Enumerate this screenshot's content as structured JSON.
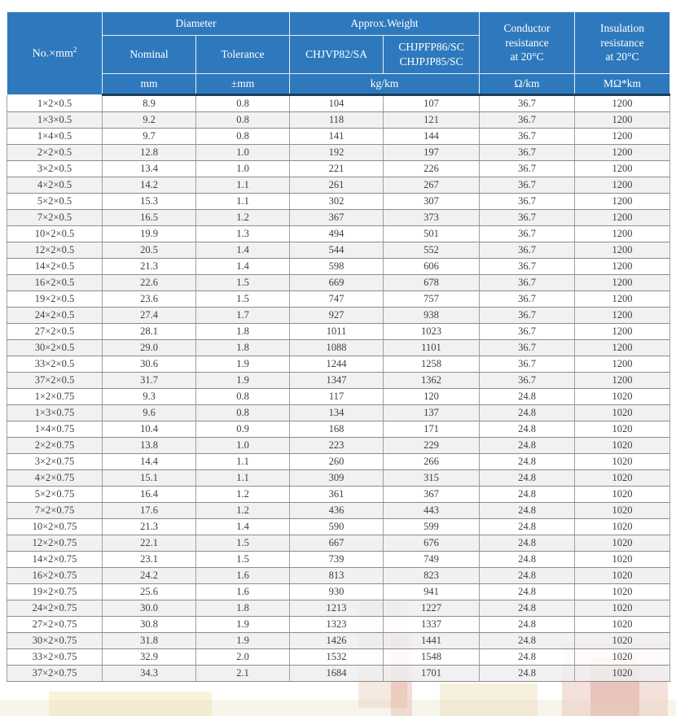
{
  "table": {
    "headers": {
      "no_base": "No.×mm",
      "no_sup": "2",
      "diameter": "Diameter",
      "nominal": "Nominal",
      "tolerance": "Tolerance",
      "approx_weight": "Approx.Weight",
      "weight_col1": "CHJVP82/SA",
      "weight_col2_line1": "CHJPFP86/SC",
      "weight_col2_line2": "CHJPJP85/SC",
      "conductor_line1": "Conductor",
      "conductor_line2": "resistance",
      "conductor_line3": "at 20°C",
      "insulation_line1": "Insulation",
      "insulation_line2": "resistance",
      "insulation_line3": "at 20°C"
    },
    "units": {
      "nominal": "mm",
      "tolerance": "±mm",
      "weight": "kg/km",
      "conductor": "Ω/km",
      "insulation": "MΩ*km"
    },
    "rows": [
      [
        "1×2×0.5",
        "8.9",
        "0.8",
        "104",
        "107",
        "36.7",
        "1200"
      ],
      [
        "1×3×0.5",
        "9.2",
        "0.8",
        "118",
        "121",
        "36.7",
        "1200"
      ],
      [
        "1×4×0.5",
        "9.7",
        "0.8",
        "141",
        "144",
        "36.7",
        "1200"
      ],
      [
        "2×2×0.5",
        "12.8",
        "1.0",
        "192",
        "197",
        "36.7",
        "1200"
      ],
      [
        "3×2×0.5",
        "13.4",
        "1.0",
        "221",
        "226",
        "36.7",
        "1200"
      ],
      [
        "4×2×0.5",
        "14.2",
        "1.1",
        "261",
        "267",
        "36.7",
        "1200"
      ],
      [
        "5×2×0.5",
        "15.3",
        "1.1",
        "302",
        "307",
        "36.7",
        "1200"
      ],
      [
        "7×2×0.5",
        "16.5",
        "1.2",
        "367",
        "373",
        "36.7",
        "1200"
      ],
      [
        "10×2×0.5",
        "19.9",
        "1.3",
        "494",
        "501",
        "36.7",
        "1200"
      ],
      [
        "12×2×0.5",
        "20.5",
        "1.4",
        "544",
        "552",
        "36.7",
        "1200"
      ],
      [
        "14×2×0.5",
        "21.3",
        "1.4",
        "598",
        "606",
        "36.7",
        "1200"
      ],
      [
        "16×2×0.5",
        "22.6",
        "1.5",
        "669",
        "678",
        "36.7",
        "1200"
      ],
      [
        "19×2×0.5",
        "23.6",
        "1.5",
        "747",
        "757",
        "36.7",
        "1200"
      ],
      [
        "24×2×0.5",
        "27.4",
        "1.7",
        "927",
        "938",
        "36.7",
        "1200"
      ],
      [
        "27×2×0.5",
        "28.1",
        "1.8",
        "1011",
        "1023",
        "36.7",
        "1200"
      ],
      [
        "30×2×0.5",
        "29.0",
        "1.8",
        "1088",
        "1101",
        "36.7",
        "1200"
      ],
      [
        "33×2×0.5",
        "30.6",
        "1.9",
        "1244",
        "1258",
        "36.7",
        "1200"
      ],
      [
        "37×2×0.5",
        "31.7",
        "1.9",
        "1347",
        "1362",
        "36.7",
        "1200"
      ],
      [
        "1×2×0.75",
        "9.3",
        "0.8",
        "117",
        "120",
        "24.8",
        "1020"
      ],
      [
        "1×3×0.75",
        "9.6",
        "0.8",
        "134",
        "137",
        "24.8",
        "1020"
      ],
      [
        "1×4×0.75",
        "10.4",
        "0.9",
        "168",
        "171",
        "24.8",
        "1020"
      ],
      [
        "2×2×0.75",
        "13.8",
        "1.0",
        "223",
        "229",
        "24.8",
        "1020"
      ],
      [
        "3×2×0.75",
        "14.4",
        "1.1",
        "260",
        "266",
        "24.8",
        "1020"
      ],
      [
        "4×2×0.75",
        "15.1",
        "1.1",
        "309",
        "315",
        "24.8",
        "1020"
      ],
      [
        "5×2×0.75",
        "16.4",
        "1.2",
        "361",
        "367",
        "24.8",
        "1020"
      ],
      [
        "7×2×0.75",
        "17.6",
        "1.2",
        "436",
        "443",
        "24.8",
        "1020"
      ],
      [
        "10×2×0.75",
        "21.3",
        "1.4",
        "590",
        "599",
        "24.8",
        "1020"
      ],
      [
        "12×2×0.75",
        "22.1",
        "1.5",
        "667",
        "676",
        "24.8",
        "1020"
      ],
      [
        "14×2×0.75",
        "23.1",
        "1.5",
        "739",
        "749",
        "24.8",
        "1020"
      ],
      [
        "16×2×0.75",
        "24.2",
        "1.6",
        "813",
        "823",
        "24.8",
        "1020"
      ],
      [
        "19×2×0.75",
        "25.6",
        "1.6",
        "930",
        "941",
        "24.8",
        "1020"
      ],
      [
        "24×2×0.75",
        "30.0",
        "1.8",
        "1213",
        "1227",
        "24.8",
        "1020"
      ],
      [
        "27×2×0.75",
        "30.8",
        "1.9",
        "1323",
        "1337",
        "24.8",
        "1020"
      ],
      [
        "30×2×0.75",
        "31.8",
        "1.9",
        "1426",
        "1441",
        "24.8",
        "1020"
      ],
      [
        "33×2×0.75",
        "32.9",
        "2.0",
        "1532",
        "1548",
        "24.8",
        "1020"
      ],
      [
        "37×2×0.75",
        "34.3",
        "2.1",
        "1684",
        "1701",
        "24.8",
        "1020"
      ]
    ]
  },
  "colors": {
    "header_bg": "#2e79bd",
    "header_bottom_border": "#1d3d5c",
    "row_alt_bg": "#eeeeee",
    "row_border": "#8c8c8c",
    "text": "#3f3f3f"
  }
}
